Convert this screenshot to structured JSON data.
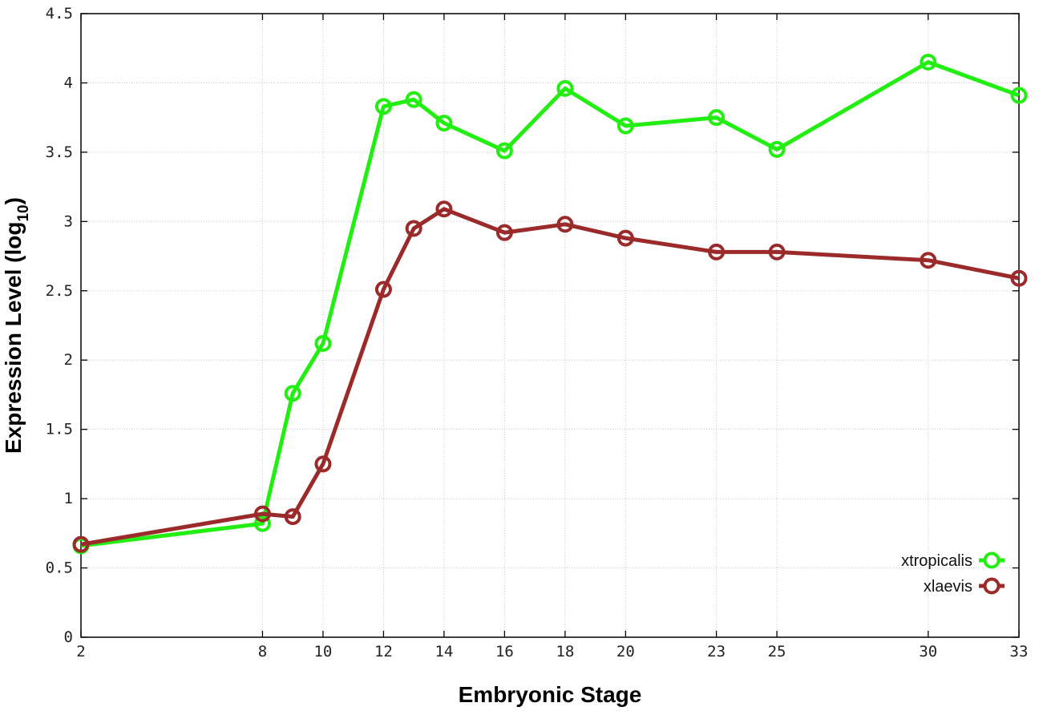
{
  "chart_data": {
    "type": "line",
    "xlabel": "Embryonic Stage",
    "ylabel": "Expression Level (log",
    "ylabel_subscript": "10",
    "ylabel_suffix": ")",
    "xlim": [
      2,
      33
    ],
    "ylim": [
      0,
      4.5
    ],
    "grid": true,
    "legend_position": "bottom-right",
    "x_ticks": [
      2,
      8,
      10,
      12,
      14,
      16,
      18,
      20,
      23,
      25,
      30,
      33
    ],
    "x_tick_labels": [
      "2",
      "8",
      "10",
      "12",
      "14",
      "16",
      "18",
      "20",
      "23",
      "25",
      "30",
      "33"
    ],
    "y_ticks": [
      0,
      0.5,
      1,
      1.5,
      2,
      2.5,
      3,
      3.5,
      4,
      4.5
    ],
    "y_tick_labels": [
      "0",
      "0.5",
      "1",
      "1.5",
      "2",
      "2.5",
      "3",
      "3.5",
      "4",
      "4.5"
    ],
    "x": [
      2,
      8,
      9,
      10,
      12,
      13,
      14,
      16,
      18,
      20,
      23,
      25,
      30,
      33
    ],
    "series": [
      {
        "name": "xtropicalis",
        "color": "#22ee11",
        "values": [
          0.66,
          0.82,
          1.76,
          2.12,
          3.83,
          3.88,
          3.71,
          3.51,
          3.96,
          3.69,
          3.75,
          3.52,
          4.15,
          3.91
        ]
      },
      {
        "name": "xlaevis",
        "color": "#9b2a2a",
        "values": [
          0.67,
          0.89,
          0.87,
          1.25,
          2.51,
          2.95,
          3.09,
          2.92,
          2.98,
          2.88,
          2.78,
          2.78,
          2.72,
          2.59
        ]
      }
    ]
  }
}
